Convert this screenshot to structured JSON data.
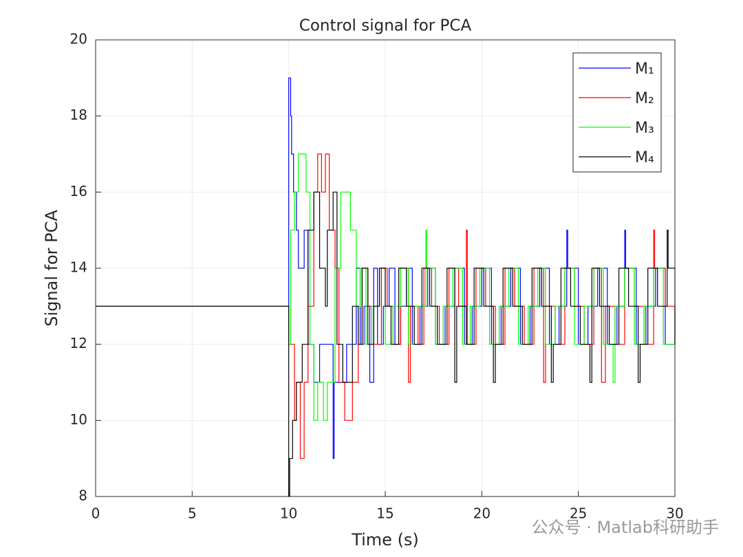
{
  "chart_data": {
    "type": "line",
    "step": true,
    "title": "Control signal for PCA",
    "xlabel": "Time (s)",
    "ylabel": "Signal for PCA",
    "xlim": [
      0,
      30
    ],
    "ylim": [
      8,
      20
    ],
    "xticks": [
      0,
      5,
      10,
      15,
      20,
      25,
      30
    ],
    "yticks": [
      8,
      10,
      12,
      14,
      16,
      18,
      20
    ],
    "grid": true,
    "legend": "upper right",
    "watermark": "公众号 · Matlab科研助手",
    "series": [
      {
        "name": "M₁",
        "color": "#0000ff",
        "x": [
          0,
          10,
          10.1,
          10.15,
          10.25,
          10.4,
          10.5,
          10.8,
          11.0,
          11.3,
          11.6,
          12.3,
          12.35,
          13.0,
          13.5,
          13.7,
          13.9,
          14.2,
          14.4,
          14.6,
          14.9,
          15.2,
          15.5,
          15.8,
          16.1,
          16.4,
          16.8,
          17.2,
          17.6,
          18.1,
          18.6,
          19.1,
          19.5,
          20.0,
          20.5,
          21.0,
          21.5,
          22.0,
          22.5,
          23.0,
          23.5,
          24.0,
          24.4,
          24.45,
          25.0,
          25.5,
          26.0,
          26.5,
          27.0,
          27.4,
          27.45,
          28.0,
          28.5,
          29.0,
          29.5,
          30
        ],
        "values": [
          13,
          19,
          18,
          17,
          16,
          15,
          14,
          15,
          12,
          11,
          12,
          9,
          11,
          12,
          14,
          12,
          13,
          11,
          14,
          12,
          13,
          14,
          12,
          13,
          14,
          12,
          13,
          14,
          12,
          13,
          14,
          12,
          13,
          14,
          12,
          13,
          14,
          12,
          13,
          14,
          12,
          13,
          15,
          14,
          12,
          13,
          14,
          12,
          13,
          15,
          14,
          12,
          13,
          14,
          12,
          13
        ]
      },
      {
        "name": "M₂",
        "color": "#ff0000",
        "x": [
          0,
          10,
          10.3,
          10.4,
          10.6,
          10.8,
          11.0,
          11.3,
          11.5,
          11.7,
          11.9,
          12.1,
          12.4,
          12.6,
          12.9,
          13.3,
          13.6,
          13.8,
          14.1,
          14.4,
          14.8,
          15.1,
          15.4,
          15.8,
          16.2,
          16.3,
          16.7,
          17.0,
          17.4,
          17.8,
          18.3,
          18.8,
          19.2,
          19.25,
          19.7,
          20.2,
          20.7,
          21.2,
          21.7,
          22.2,
          22.7,
          23.2,
          23.3,
          23.8,
          24.3,
          24.8,
          25.3,
          25.8,
          26.2,
          26.4,
          26.9,
          27.4,
          27.9,
          28.4,
          28.9,
          28.95,
          29.5,
          30
        ],
        "values": [
          13,
          12,
          10,
          11,
          9,
          11,
          13,
          16,
          17,
          16,
          17,
          15,
          14,
          11,
          10,
          11,
          12,
          14,
          13,
          12,
          14,
          13,
          12,
          14,
          11,
          13,
          12,
          14,
          13,
          12,
          14,
          13,
          15,
          12,
          14,
          13,
          12,
          14,
          13,
          12,
          14,
          11,
          13,
          12,
          14,
          13,
          12,
          14,
          11,
          13,
          12,
          14,
          13,
          12,
          15,
          14,
          13,
          12
        ]
      },
      {
        "name": "M₃",
        "color": "#00ff00",
        "x": [
          0,
          10,
          10.1,
          10.3,
          10.5,
          10.9,
          11.1,
          11.3,
          11.5,
          11.8,
          12.0,
          12.4,
          12.7,
          13.2,
          13.5,
          13.7,
          14.0,
          14.3,
          14.7,
          15.0,
          15.4,
          15.8,
          16.2,
          16.5,
          17.1,
          17.15,
          17.6,
          18.0,
          18.5,
          19.0,
          19.4,
          19.9,
          20.4,
          20.9,
          21.4,
          21.9,
          22.4,
          22.9,
          23.3,
          23.8,
          24.3,
          24.8,
          25.3,
          25.8,
          26.3,
          26.8,
          26.9,
          27.4,
          27.9,
          28.4,
          28.9,
          29.4,
          30
        ],
        "values": [
          13,
          12,
          15,
          16,
          17,
          16,
          12,
          10,
          11,
          10,
          11,
          14,
          16,
          15,
          13,
          14,
          12,
          13,
          14,
          12,
          13,
          14,
          12,
          13,
          15,
          14,
          12,
          13,
          14,
          12,
          13,
          14,
          12,
          13,
          14,
          12,
          13,
          14,
          12,
          13,
          14,
          12,
          13,
          14,
          12,
          11,
          13,
          14,
          12,
          13,
          14,
          12,
          13
        ]
      },
      {
        "name": "M₄",
        "color": "#000000",
        "x": [
          0,
          10,
          10.05,
          10.2,
          10.4,
          10.7,
          11.0,
          11.3,
          11.6,
          11.9,
          12.0,
          12.3,
          12.5,
          12.8,
          13.3,
          13.6,
          13.8,
          14.1,
          14.4,
          14.7,
          15.0,
          15.3,
          15.7,
          16.1,
          16.5,
          16.9,
          17.3,
          17.7,
          18.2,
          18.6,
          18.7,
          19.2,
          19.6,
          20.1,
          20.6,
          20.7,
          21.1,
          21.6,
          22.1,
          22.6,
          23.1,
          23.6,
          23.7,
          24.1,
          24.6,
          25.1,
          25.6,
          25.7,
          26.1,
          26.6,
          27.1,
          27.6,
          28.1,
          28.2,
          28.6,
          29.1,
          29.6,
          29.65,
          30
        ],
        "values": [
          13,
          8,
          9,
          10,
          11,
          12,
          15,
          16,
          14,
          13,
          15,
          16,
          12,
          11,
          13,
          12,
          14,
          12,
          13,
          14,
          13,
          12,
          14,
          13,
          12,
          14,
          13,
          12,
          14,
          11,
          13,
          12,
          14,
          13,
          11,
          12,
          14,
          13,
          12,
          14,
          13,
          11,
          12,
          14,
          13,
          12,
          11,
          14,
          13,
          12,
          14,
          13,
          11,
          12,
          14,
          13,
          15,
          14,
          12
        ]
      }
    ]
  }
}
